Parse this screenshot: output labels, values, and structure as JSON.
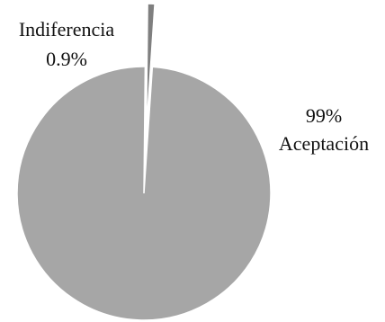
{
  "chart_data": {
    "type": "pie",
    "categories": [
      "Indiferencia",
      "Aceptación"
    ],
    "values": [
      0.9,
      99
    ],
    "value_labels": [
      "0.9%",
      "99%"
    ],
    "colors": {
      "Indiferencia": "#7f7f7f",
      "Aceptación": "#a6a6a6",
      "slice_border": "#ffffff"
    },
    "title": "",
    "legend": "none",
    "exploded_slice": "Indiferencia"
  }
}
